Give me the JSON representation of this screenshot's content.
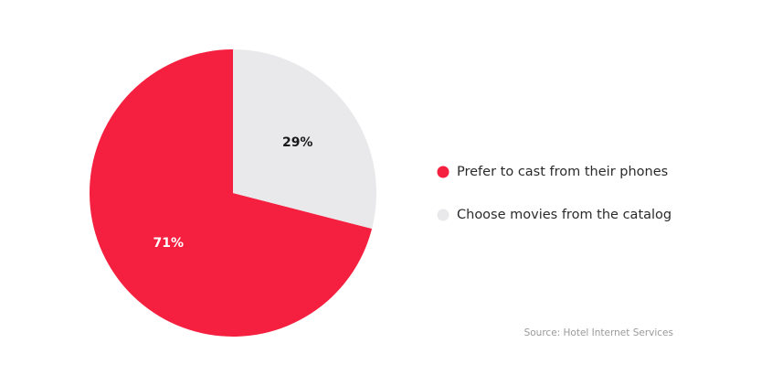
{
  "chart_data": {
    "type": "pie",
    "categories": [
      "Prefer to cast from their phones",
      "Choose movies from the catalog"
    ],
    "values": [
      71,
      29
    ],
    "value_labels": [
      "71%",
      "29%"
    ],
    "colors": [
      "#f5203f",
      "#e9e9ec"
    ],
    "label_colors": [
      "#ffffff",
      "#1a1a1a"
    ],
    "source": "Source: Hotel Internet Services"
  }
}
